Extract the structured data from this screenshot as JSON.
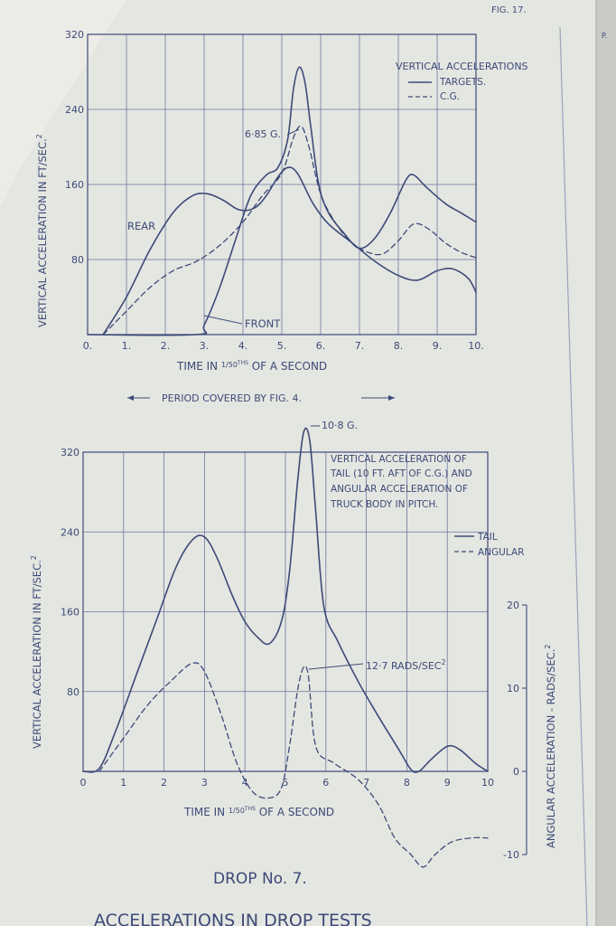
{
  "page": {
    "fig_label": "FIG. 17.",
    "edge_mark": "P.",
    "drop_label": "DROP No. 7.",
    "footer_title": "ACCELERATIONS IN DROP TESTS",
    "period_note": "PERIOD COVERED BY FIG. 4."
  },
  "colors": {
    "ink": "#3d4a78",
    "paper": "#e4e6e1",
    "grid": "#6c77a0"
  },
  "chart_data": [
    {
      "type": "line",
      "title": "VERTICAL ACCELERATIONS",
      "xlabel_pre": "TIME IN ",
      "xlabel_frac": "1/50",
      "xlabel_sup": "THS",
      "xlabel_post": " OF A SECOND",
      "ylabel": "VERTICAL ACCELERATION IN FT/SEC.",
      "ylabel_sup": "2",
      "xlim": [
        0,
        10
      ],
      "ylim": [
        0,
        320
      ],
      "x_ticks": [
        "0.",
        "1.",
        "2.",
        "3.",
        "4.",
        "5.",
        "6.",
        "7.",
        "8.",
        "9.",
        "10."
      ],
      "y_ticks": [
        "80",
        "160",
        "240",
        "320"
      ],
      "y_tick_values": [
        80,
        160,
        240,
        320
      ],
      "grid": true,
      "legend": [
        {
          "label": "TARGETS.",
          "style": "solid"
        },
        {
          "label": "C.G.",
          "style": "dashed"
        }
      ],
      "annotations": [
        {
          "text": "6·85 G.",
          "x": 4.1,
          "y": 212
        },
        {
          "text": "REAR",
          "x": 1.1,
          "y": 115
        },
        {
          "text": "FRONT",
          "x": 4.0,
          "y": 5
        }
      ],
      "series": [
        {
          "name": "REAR",
          "style": "solid",
          "points": [
            [
              0.4,
              0
            ],
            [
              1.0,
              40
            ],
            [
              1.6,
              90
            ],
            [
              2.2,
              130
            ],
            [
              2.7,
              148
            ],
            [
              3.1,
              150
            ],
            [
              3.5,
              143
            ],
            [
              3.9,
              133
            ],
            [
              4.3,
              135
            ],
            [
              4.6,
              148
            ],
            [
              4.9,
              168
            ],
            [
              5.15,
              178
            ],
            [
              5.4,
              172
            ],
            [
              5.8,
              140
            ],
            [
              6.2,
              118
            ],
            [
              6.8,
              98
            ],
            [
              7.4,
              78
            ],
            [
              8.0,
              63
            ],
            [
              8.5,
              58
            ],
            [
              9.0,
              68
            ],
            [
              9.4,
              70
            ],
            [
              9.8,
              60
            ],
            [
              10.0,
              45
            ]
          ]
        },
        {
          "name": "FRONT",
          "style": "solid",
          "points": [
            [
              0,
              0
            ],
            [
              2.8,
              0
            ],
            [
              3.0,
              10
            ],
            [
              3.4,
              50
            ],
            [
              3.8,
              100
            ],
            [
              4.2,
              148
            ],
            [
              4.6,
              170
            ],
            [
              4.9,
              178
            ],
            [
              5.15,
              208
            ],
            [
              5.3,
              262
            ],
            [
              5.45,
              285
            ],
            [
              5.6,
              268
            ],
            [
              5.75,
              220
            ],
            [
              5.95,
              160
            ],
            [
              6.2,
              130
            ],
            [
              6.6,
              108
            ],
            [
              7.0,
              92
            ],
            [
              7.4,
              103
            ],
            [
              7.8,
              130
            ],
            [
              8.2,
              165
            ],
            [
              8.4,
              170
            ],
            [
              8.7,
              158
            ],
            [
              9.2,
              140
            ],
            [
              9.6,
              130
            ],
            [
              10.0,
              120
            ]
          ]
        },
        {
          "name": "C.G.",
          "style": "dashed",
          "points": [
            [
              0.4,
              0
            ],
            [
              1.0,
              25
            ],
            [
              1.6,
              50
            ],
            [
              2.2,
              68
            ],
            [
              2.8,
              78
            ],
            [
              3.4,
              95
            ],
            [
              4.0,
              120
            ],
            [
              4.5,
              148
            ],
            [
              5.0,
              172
            ],
            [
              5.3,
              210
            ],
            [
              5.5,
              222
            ],
            [
              5.7,
              200
            ],
            [
              6.0,
              150
            ],
            [
              6.4,
              118
            ],
            [
              6.8,
              98
            ],
            [
              7.2,
              88
            ],
            [
              7.6,
              86
            ],
            [
              8.0,
              100
            ],
            [
              8.4,
              118
            ],
            [
              8.8,
              112
            ],
            [
              9.2,
              98
            ],
            [
              9.6,
              88
            ],
            [
              10.0,
              82
            ]
          ]
        }
      ]
    },
    {
      "type": "line",
      "title": "VERTICAL ACCELERATION OF TAIL (10 FT. AFT OF C.G.) AND ANGULAR ACCELERATION OF TRUCK BODY IN PITCH.",
      "title_lines": [
        "VERTICAL ACCELERATION OF",
        "TAIL (10 FT. AFT OF C.G.) AND",
        "ANGULAR ACCELERATION OF",
        "TRUCK BODY IN PITCH."
      ],
      "xlabel_pre": "TIME IN ",
      "xlabel_frac": "1/50",
      "xlabel_sup": "THS",
      "xlabel_post": " OF A SECOND",
      "ylabel": "VERTICAL ACCELERATION IN FT/SEC.",
      "ylabel_sup": "2",
      "y2label": "ANGULAR ACCELERATION - RADS/SEC.",
      "y2label_sup": "2",
      "xlim": [
        0,
        10
      ],
      "ylim": [
        0,
        320
      ],
      "y2lim": [
        -10,
        20
      ],
      "x_ticks": [
        "0",
        "1",
        "2",
        "3",
        "4",
        "5",
        "6",
        "7",
        "8",
        "9",
        "10"
      ],
      "y_ticks": [
        "80",
        "160",
        "240",
        "320"
      ],
      "y_tick_values": [
        80,
        160,
        240,
        320
      ],
      "y2_ticks": [
        "20",
        "10",
        "0",
        "-10"
      ],
      "y2_tick_values": [
        20,
        10,
        0,
        -10
      ],
      "grid": true,
      "legend": [
        {
          "label": "TAIL",
          "style": "solid"
        },
        {
          "label": "ANGULAR",
          "style": "dashed"
        }
      ],
      "annotations": [
        {
          "text": "10·8 G."
        },
        {
          "text": "12·7 RADS/SEC",
          "sup": "2"
        }
      ],
      "series": [
        {
          "name": "TAIL",
          "style": "solid",
          "axis": "left",
          "points": [
            [
              0,
              0
            ],
            [
              0.4,
              3
            ],
            [
              0.8,
              40
            ],
            [
              1.3,
              95
            ],
            [
              1.8,
              150
            ],
            [
              2.3,
              205
            ],
            [
              2.7,
              232
            ],
            [
              3.0,
              235
            ],
            [
              3.3,
              215
            ],
            [
              3.7,
              175
            ],
            [
              4.0,
              150
            ],
            [
              4.3,
              135
            ],
            [
              4.6,
              128
            ],
            [
              4.9,
              150
            ],
            [
              5.1,
              200
            ],
            [
              5.3,
              290
            ],
            [
              5.45,
              340
            ],
            [
              5.6,
              332
            ],
            [
              5.75,
              260
            ],
            [
              5.95,
              165
            ],
            [
              6.3,
              130
            ],
            [
              6.8,
              90
            ],
            [
              7.3,
              55
            ],
            [
              7.8,
              22
            ],
            [
              8.1,
              2
            ],
            [
              8.3,
              0
            ],
            [
              8.6,
              12
            ],
            [
              9.0,
              25
            ],
            [
              9.3,
              22
            ],
            [
              9.7,
              8
            ],
            [
              10.0,
              0
            ]
          ]
        },
        {
          "name": "ANGULAR",
          "style": "dashed",
          "axis": "right",
          "points": [
            [
              0.4,
              0
            ],
            [
              1.0,
              4
            ],
            [
              1.6,
              8
            ],
            [
              2.2,
              11
            ],
            [
              2.7,
              13
            ],
            [
              3.0,
              12
            ],
            [
              3.4,
              7
            ],
            [
              3.8,
              1
            ],
            [
              4.2,
              -2.5
            ],
            [
              4.6,
              -3.2
            ],
            [
              4.9,
              -2
            ],
            [
              5.1,
              3
            ],
            [
              5.35,
              11
            ],
            [
              5.55,
              12
            ],
            [
              5.75,
              3
            ],
            [
              6.2,
              1
            ],
            [
              6.8,
              -1
            ],
            [
              7.3,
              -4
            ],
            [
              7.7,
              -8
            ],
            [
              8.1,
              -10
            ],
            [
              8.4,
              -11.5
            ],
            [
              8.7,
              -10
            ],
            [
              9.1,
              -8.5
            ],
            [
              9.6,
              -8
            ],
            [
              10.0,
              -8
            ]
          ]
        }
      ]
    }
  ]
}
